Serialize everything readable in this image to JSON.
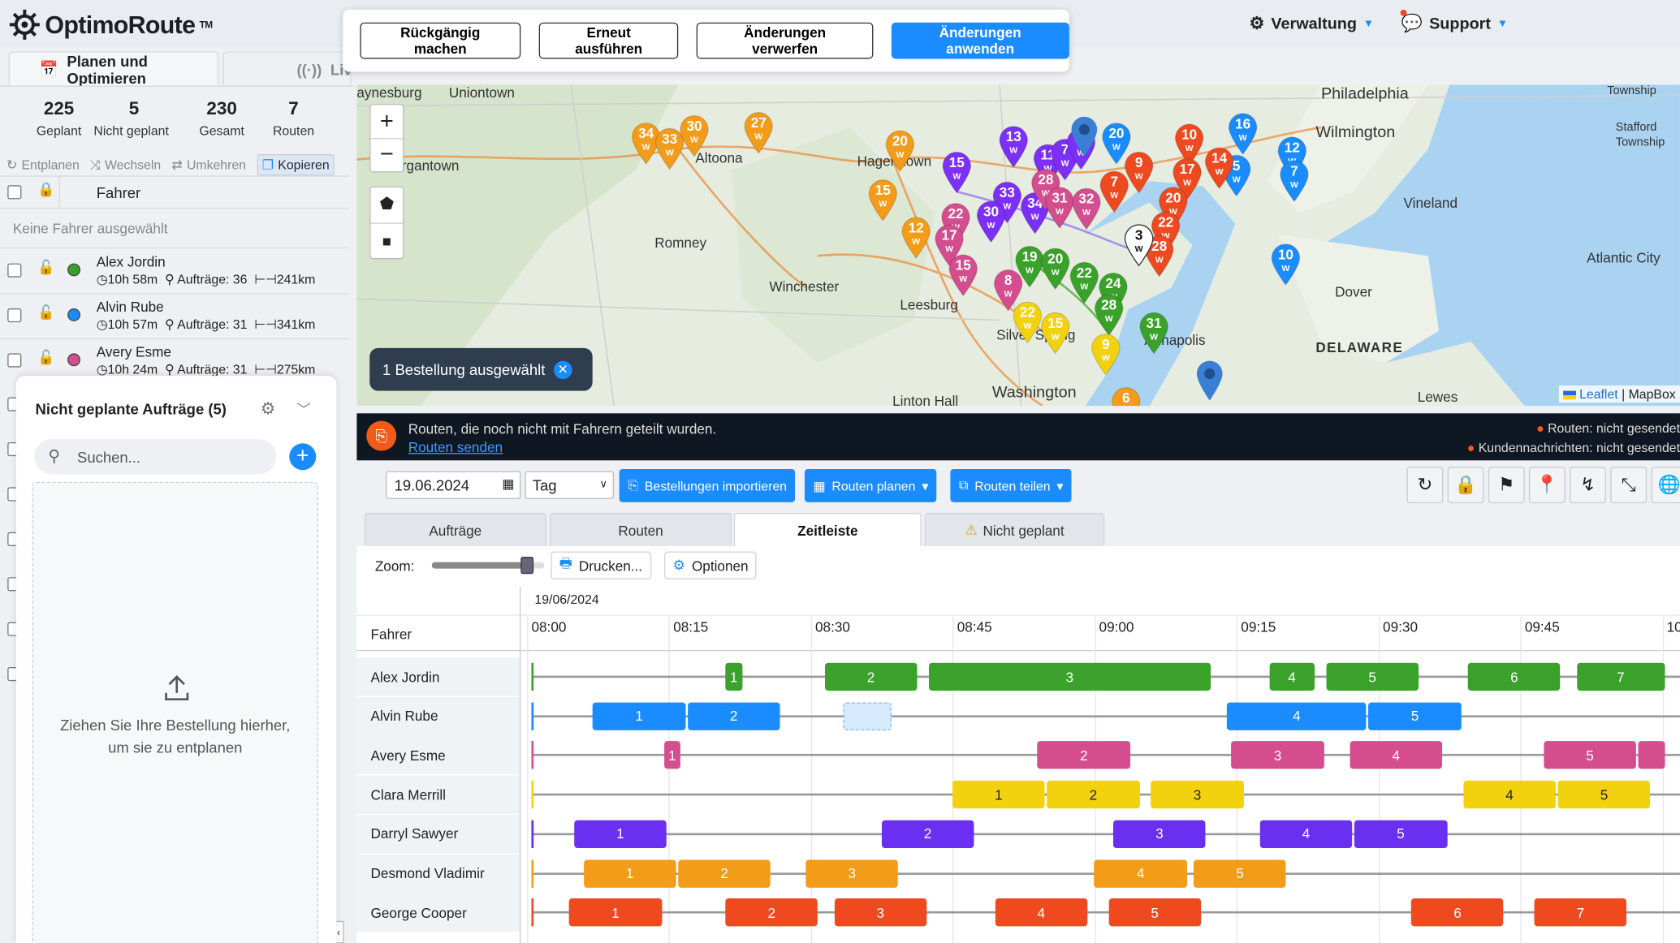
{
  "header": {
    "logo": "OptimoRoute",
    "logo_tm": "TM",
    "admin_label": "Verwaltung",
    "support_label": "Support"
  },
  "toolbar": {
    "undo": "Rückgängig machen",
    "redo": "Erneut ausführen",
    "discard": "Änderungen verwerfen",
    "apply": "Änderungen anwenden"
  },
  "left_tabs": {
    "plan": "Planen und Optimieren",
    "live": "Liv"
  },
  "stats": [
    {
      "value": "225",
      "label": "Geplant"
    },
    {
      "value": "5",
      "label": "Nicht geplant"
    },
    {
      "value": "230",
      "label": "Gesamt"
    },
    {
      "value": "7",
      "label": "Routen"
    }
  ],
  "actions": {
    "unplan": "Entplanen",
    "swap": "Wechseln",
    "reverse": "Umkehren",
    "copy": "Kopieren"
  },
  "driver_header": "Fahrer",
  "no_driver": "Keine Fahrer ausgewählt",
  "drivers": [
    {
      "name": "Alex Jordin",
      "time": "10h 58m",
      "orders": "Aufträge: 36",
      "dist": "241km",
      "color": "#3aa12a"
    },
    {
      "name": "Alvin Rube",
      "time": "10h 57m",
      "orders": "Aufträge: 31",
      "dist": "341km",
      "color": "#1a8cff"
    },
    {
      "name": "Avery Esme",
      "time": "10h 24m",
      "orders": "Aufträge: 31",
      "dist": "275km",
      "color": "#d44d8e"
    }
  ],
  "unplanned": {
    "title": "Nicht geplante Aufträge (5)",
    "search_placeholder": "Suchen...",
    "drop_line1": "Ziehen Sie Ihre Bestellung hierher,",
    "drop_line2": "um sie zu entplanen"
  },
  "map": {
    "selection_chip": "1 Bestellung ausgewählt",
    "attribution_leaflet": "Leaflet",
    "attribution_sep": "|",
    "attribution_mapbox": "MapBox",
    "cities": [
      "aynesburg",
      "Uniontown",
      "rgantown",
      "Romney",
      "Winchester",
      "Leesburg",
      "Washington",
      "Linton Hall",
      "Philadelphia",
      "Wilmington",
      "Vineland",
      "Atlantic City",
      "Dover",
      "DELAWARE",
      "Lewes",
      "Township",
      "Stafford Township",
      "Hagerstown",
      "Silver Spring",
      "Annapolis",
      "Altoona"
    ],
    "pins": [
      {
        "n": "34",
        "c": "#f39c1a"
      },
      {
        "n": "33",
        "c": "#f39c1a"
      },
      {
        "n": "30",
        "c": "#f39c1a"
      },
      {
        "n": "27",
        "c": "#f39c1a"
      },
      {
        "n": "20",
        "c": "#f39c1a"
      },
      {
        "n": "15",
        "c": "#f39c1a"
      },
      {
        "n": "12",
        "c": "#f39c1a"
      },
      {
        "n": "13",
        "c": "#7b2ff7"
      },
      {
        "n": "15",
        "c": "#7b2ff7"
      },
      {
        "n": "11",
        "c": "#7b2ff7"
      },
      {
        "n": "7",
        "c": "#7b2ff7"
      },
      {
        "n": "5",
        "c": "#7b2ff7"
      },
      {
        "n": "33",
        "c": "#7b2ff7"
      },
      {
        "n": "30",
        "c": "#7b2ff7"
      },
      {
        "n": "34",
        "c": "#7b2ff7"
      },
      {
        "n": "20",
        "c": "#1a8cff"
      },
      {
        "n": "16",
        "c": "#1a8cff"
      },
      {
        "n": "12",
        "c": "#1a8cff"
      },
      {
        "n": "5",
        "c": "#1a8cff"
      },
      {
        "n": "7",
        "c": "#1a8cff"
      },
      {
        "n": "10",
        "c": "#1a8cff"
      },
      {
        "n": "10",
        "c": "#ef4a1f"
      },
      {
        "n": "9",
        "c": "#ef4a1f"
      },
      {
        "n": "17",
        "c": "#ef4a1f"
      },
      {
        "n": "14",
        "c": "#ef4a1f"
      },
      {
        "n": "7",
        "c": "#ef4a1f"
      },
      {
        "n": "20",
        "c": "#ef4a1f"
      },
      {
        "n": "22",
        "c": "#ef4a1f"
      },
      {
        "n": "28",
        "c": "#ef4a1f"
      },
      {
        "n": "28",
        "c": "#d44d8e"
      },
      {
        "n": "31",
        "c": "#d44d8e"
      },
      {
        "n": "32",
        "c": "#d44d8e"
      },
      {
        "n": "22",
        "c": "#d44d8e"
      },
      {
        "n": "17",
        "c": "#d44d8e"
      },
      {
        "n": "15",
        "c": "#d44d8e"
      },
      {
        "n": "8",
        "c": "#d44d8e"
      },
      {
        "n": "19",
        "c": "#3aa12a"
      },
      {
        "n": "20",
        "c": "#3aa12a"
      },
      {
        "n": "22",
        "c": "#3aa12a"
      },
      {
        "n": "24",
        "c": "#3aa12a"
      },
      {
        "n": "28",
        "c": "#3aa12a"
      },
      {
        "n": "31",
        "c": "#3aa12a"
      },
      {
        "n": "22",
        "c": "#f2d20f"
      },
      {
        "n": "15",
        "c": "#f2d20f"
      },
      {
        "n": "9",
        "c": "#f2d20f"
      },
      {
        "n": "6",
        "c": "#f39c1a"
      },
      {
        "n": "3",
        "c": "#ffffff"
      }
    ]
  },
  "banner": {
    "message": "Routen, die noch nicht mit Fahrern geteilt wurden.",
    "link": "Routen senden",
    "status1": "Routen: nicht gesendet",
    "status2": "Kundennachrichten: nicht gesendet"
  },
  "controls": {
    "date": "19.06.2024",
    "period": "Tag",
    "import": "Bestellungen importieren",
    "plan": "Routen planen",
    "share": "Routen teilen"
  },
  "view_tabs": [
    "Aufträge",
    "Routen",
    "Zeitleiste",
    "Nicht geplant"
  ],
  "timeline": {
    "zoom_label": "Zoom:",
    "zoom_level": 0.85,
    "print": "Drucken...",
    "options": "Optionen",
    "date": "19/06/2024",
    "driver_col": "Fahrer",
    "times": [
      "08:00",
      "08:15",
      "08:30",
      "08:45",
      "09:00",
      "09:15",
      "09:30",
      "09:45",
      "10"
    ],
    "rows": [
      {
        "name": "Alex Jordin",
        "color": "#3aa12a",
        "blocks": [
          {
            "s": "08:20.5",
            "e": "08:22.5",
            "l": "1"
          },
          {
            "s": "08:31",
            "e": "08:41",
            "l": "2"
          },
          {
            "s": "08:42",
            "e": "09:12",
            "l": "3"
          },
          {
            "s": "09:18",
            "e": "09:23",
            "l": "4"
          },
          {
            "s": "09:24",
            "e": "09:34",
            "l": "5"
          },
          {
            "s": "09:39",
            "e": "09:49",
            "l": "6"
          },
          {
            "s": "09:50.5",
            "e": "10:00",
            "l": "7"
          }
        ]
      },
      {
        "name": "Alvin Rube",
        "color": "#1a8cff",
        "blocks": [
          {
            "s": "08:06.5",
            "e": "08:16.5",
            "l": "1"
          },
          {
            "s": "08:16.5",
            "e": "08:26.5",
            "l": "2"
          },
          {
            "s": "09:13.5",
            "e": "09:28.5",
            "l": "4"
          },
          {
            "s": "09:28.5",
            "e": "09:38.5",
            "l": "5"
          }
        ],
        "ghost": {
          "s": "08:33",
          "e": "08:38"
        }
      },
      {
        "name": "Avery Esme",
        "color": "#d44d8e",
        "blocks": [
          {
            "s": "08:14",
            "e": "08:16",
            "l": "1"
          },
          {
            "s": "08:53.5",
            "e": "09:03.5",
            "l": "2"
          },
          {
            "s": "09:14",
            "e": "09:24",
            "l": "3"
          },
          {
            "s": "09:26.5",
            "e": "09:36.5",
            "l": "4"
          },
          {
            "s": "09:47",
            "e": "09:57",
            "l": "5"
          },
          {
            "s": "09:57",
            "e": "10:00",
            "l": ""
          }
        ]
      },
      {
        "name": "Clara Merrill",
        "color": "#f2d20f",
        "blocks": [
          {
            "s": "08:44.5",
            "e": "08:54.5",
            "l": "1"
          },
          {
            "s": "08:54.5",
            "e": "09:04.5",
            "l": "2"
          },
          {
            "s": "09:05.5",
            "e": "09:15.5",
            "l": "3"
          },
          {
            "s": "09:38.5",
            "e": "09:48.5",
            "l": "4"
          },
          {
            "s": "09:48.5",
            "e": "09:58.5",
            "l": "5"
          }
        ]
      },
      {
        "name": "Darryl Sawyer",
        "color": "#6a2ff0",
        "blocks": [
          {
            "s": "08:00",
            "e": "08:00.2",
            "l": ""
          },
          {
            "s": "08:04.5",
            "e": "08:14.5",
            "l": "1"
          },
          {
            "s": "08:37",
            "e": "08:47",
            "l": "2"
          },
          {
            "s": "09:01.5",
            "e": "09:11.5",
            "l": "3"
          },
          {
            "s": "09:17",
            "e": "09:27",
            "l": "4"
          },
          {
            "s": "09:27",
            "e": "09:37",
            "l": "5"
          }
        ]
      },
      {
        "name": "Desmond Vladimir",
        "color": "#f39c1a",
        "blocks": [
          {
            "s": "08:05.5",
            "e": "08:15.5",
            "l": "1"
          },
          {
            "s": "08:15.5",
            "e": "08:25.5",
            "l": "2"
          },
          {
            "s": "08:29",
            "e": "08:39",
            "l": "3"
          },
          {
            "s": "08:59.5",
            "e": "09:09.5",
            "l": "4"
          },
          {
            "s": "09:10",
            "e": "09:20",
            "l": "5"
          }
        ]
      },
      {
        "name": "George Cooper",
        "color": "#ef4a1f",
        "blocks": [
          {
            "s": "08:04",
            "e": "08:14",
            "l": "1"
          },
          {
            "s": "08:20.5",
            "e": "08:30.5",
            "l": "2"
          },
          {
            "s": "08:32",
            "e": "08:42",
            "l": "3"
          },
          {
            "s": "08:49",
            "e": "08:59",
            "l": "4"
          },
          {
            "s": "09:01",
            "e": "09:11",
            "l": "5"
          },
          {
            "s": "09:33",
            "e": "09:43",
            "l": "6"
          },
          {
            "s": "09:46",
            "e": "09:56",
            "l": "7"
          }
        ]
      }
    ]
  },
  "colors": {
    "accent": "#1a8cff",
    "dark_banner": "#0f1722"
  }
}
